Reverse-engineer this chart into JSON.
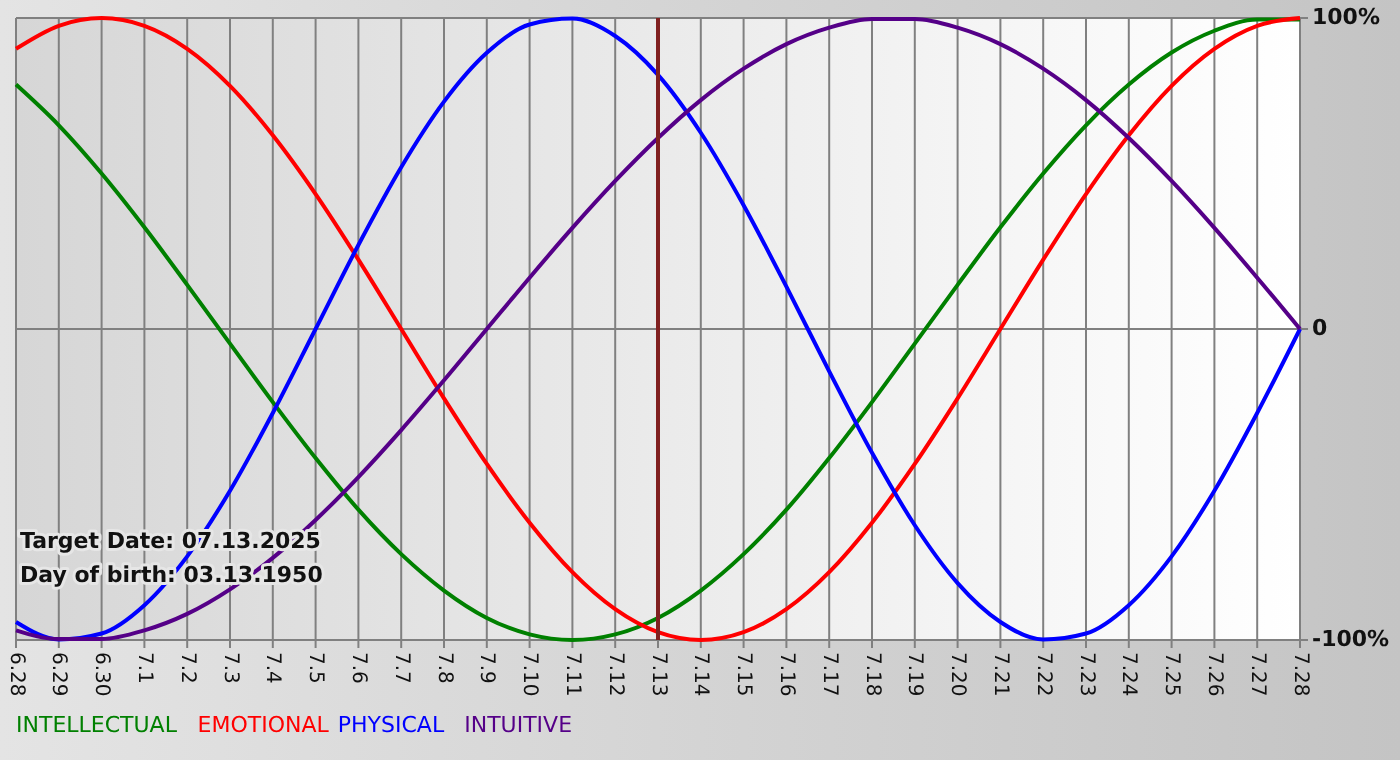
{
  "chart_data": {
    "type": "line",
    "categories": [
      "6.28",
      "6.29",
      "6.30",
      "7.1",
      "7.2",
      "7.3",
      "7.4",
      "7.5",
      "7.6",
      "7.7",
      "7.8",
      "7.9",
      "7.10",
      "7.11",
      "7.12",
      "7.13",
      "7.14",
      "7.15",
      "7.16",
      "7.17",
      "7.18",
      "7.19",
      "7.20",
      "7.21",
      "7.22",
      "7.23",
      "7.24",
      "7.25",
      "7.26",
      "7.27",
      "7.28"
    ],
    "series": [
      {
        "name": "INTELLECTUAL",
        "color": "#008000",
        "values": [
          78.6,
          65.5,
          50,
          32.7,
          14.2,
          -4.7,
          -23.5,
          -41.5,
          -58.1,
          -72.4,
          -84.1,
          -92.9,
          -98.2,
          -100,
          -98.2,
          -92.9,
          -84.1,
          -72.4,
          -58.1,
          -41.5,
          -23.5,
          -4.7,
          14.2,
          32.7,
          50,
          65.5,
          78.6,
          88.9,
          95.9,
          99.5,
          99.5
        ]
      },
      {
        "name": "EMOTIONAL",
        "color": "#ff0000",
        "values": [
          90.1,
          97.5,
          100,
          97.5,
          90.1,
          78.2,
          62.3,
          43.4,
          22.3,
          0,
          -22.3,
          -43.4,
          -62.3,
          -78.2,
          -90.1,
          -97.5,
          -100,
          -97.5,
          -90.1,
          -78.2,
          -62.3,
          -43.4,
          -22.3,
          0,
          22.3,
          43.4,
          62.3,
          78.2,
          90.1,
          97.5,
          100
        ]
      },
      {
        "name": "PHYSICAL",
        "color": "#0000ff",
        "values": [
          -94.2,
          -99.8,
          -97.9,
          -88.8,
          -73.1,
          -52,
          -27,
          0,
          27,
          52,
          73.1,
          88.8,
          97.9,
          99.8,
          94.2,
          81.7,
          63.1,
          39.8,
          13.6,
          -13.6,
          -39.8,
          -63.1,
          -81.7,
          -94.2,
          -99.8,
          -97.9,
          -88.8,
          -73.1,
          -52,
          -27,
          0
        ]
      },
      {
        "name": "INTUITIVE",
        "color": "#550088",
        "values": [
          -96.9,
          -99.7,
          -99.7,
          -96.9,
          -91.6,
          -83.7,
          -73.6,
          -61.4,
          -47.6,
          -32.5,
          -16.5,
          0,
          16.5,
          32.5,
          47.6,
          61.4,
          73.6,
          83.7,
          91.6,
          96.9,
          99.7,
          99.7,
          96.9,
          91.6,
          83.7,
          73.6,
          61.4,
          47.6,
          32.5,
          16.5,
          0
        ]
      }
    ],
    "ylim": [
      -100,
      100
    ],
    "yticks": [
      {
        "value": 100,
        "label": "100%"
      },
      0,
      {
        "value": -100,
        "label": "-100%"
      }
    ],
    "grid": true,
    "legend": "bottom",
    "ref_lines": [
      {
        "axis": "x",
        "value": "7.13",
        "color": "#802020"
      }
    ],
    "annotations": [
      "Target Date: 07.13.2025",
      "Day of birth: 03.13.1950"
    ]
  }
}
